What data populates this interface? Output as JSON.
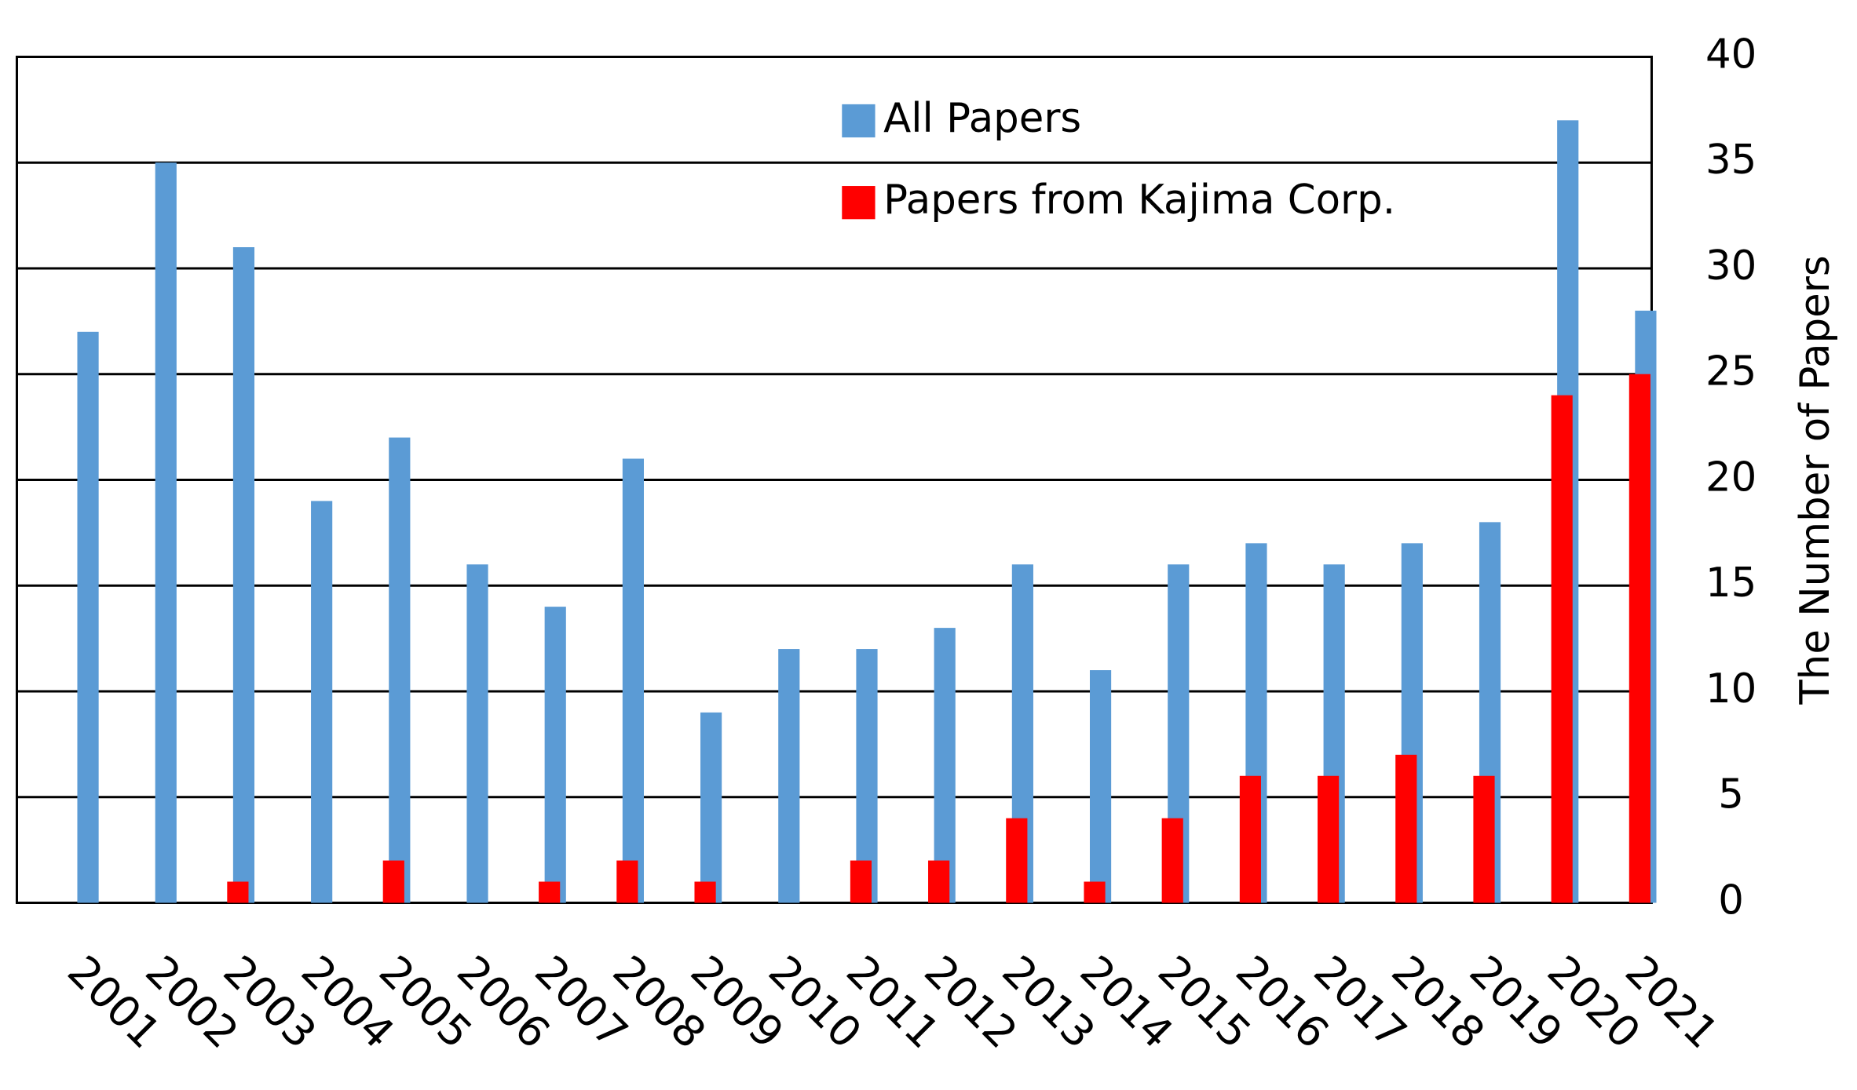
{
  "chart_data": {
    "type": "bar",
    "y_label": "The Number of Papers",
    "categories": [
      "2001",
      "2002",
      "2003",
      "2004",
      "2005",
      "2006",
      "2007",
      "2008",
      "2009",
      "2010",
      "2011",
      "2012",
      "2013",
      "2014",
      "2015",
      "2016",
      "2017",
      "2018",
      "2019",
      "2020",
      "2021"
    ],
    "series": [
      {
        "name": "All Papers",
        "color": "#5b9bd5",
        "values": [
          27,
          35,
          31,
          19,
          22,
          16,
          14,
          21,
          9,
          12,
          12,
          13,
          16,
          11,
          16,
          17,
          16,
          17,
          18,
          37,
          28
        ]
      },
      {
        "name": "Papers from Kajima Corp.",
        "color": "#ff0000",
        "values": [
          0,
          0,
          1,
          0,
          2,
          0,
          1,
          2,
          1,
          0,
          2,
          2,
          4,
          1,
          4,
          6,
          6,
          7,
          6,
          24,
          25
        ]
      }
    ],
    "ylim": [
      0,
      40
    ],
    "yticks": [
      0,
      5,
      10,
      15,
      20,
      25,
      30,
      35,
      40
    ],
    "y_axis_side": "right",
    "grid": true,
    "legend_position": "top"
  }
}
